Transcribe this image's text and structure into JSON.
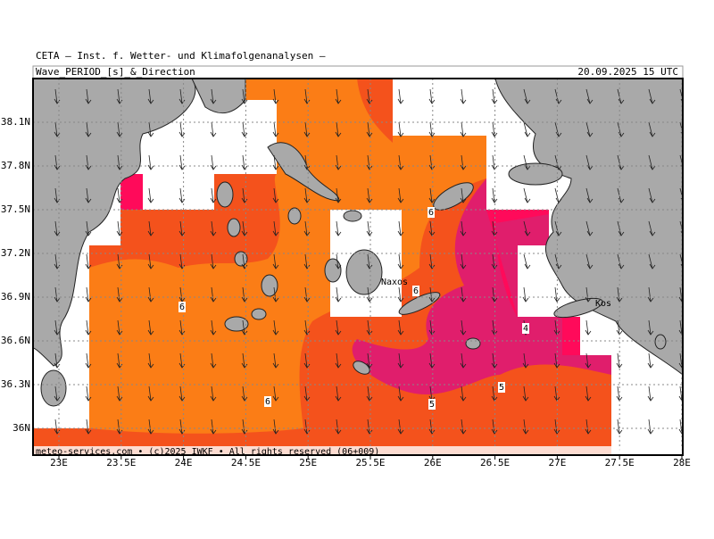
{
  "header": {
    "source": "CETA — Inst. f. Wetter- und Klimafolgenanalysen —",
    "title": "Wave_PERIOD_[s]_&_Direction",
    "datetime": "20.09.2025 15 UTC"
  },
  "axes": {
    "lon_ticks": [
      "23E",
      "23.5E",
      "24E",
      "24.5E",
      "25E",
      "25.5E",
      "26E",
      "26.5E",
      "27E",
      "27.5E",
      "28E"
    ],
    "lat_ticks": [
      "38.1N",
      "37.8N",
      "37.5N",
      "37.2N",
      "36.9N",
      "36.6N",
      "36.3N",
      "36N"
    ]
  },
  "contour_labels": [
    "6",
    "6",
    "6",
    "6",
    "5",
    "5",
    "4"
  ],
  "places": [
    "Naxos",
    "Kos"
  ],
  "footer": "meteo-services.com • (c)2025 IWKF • All rights reserved (06+009)"
}
